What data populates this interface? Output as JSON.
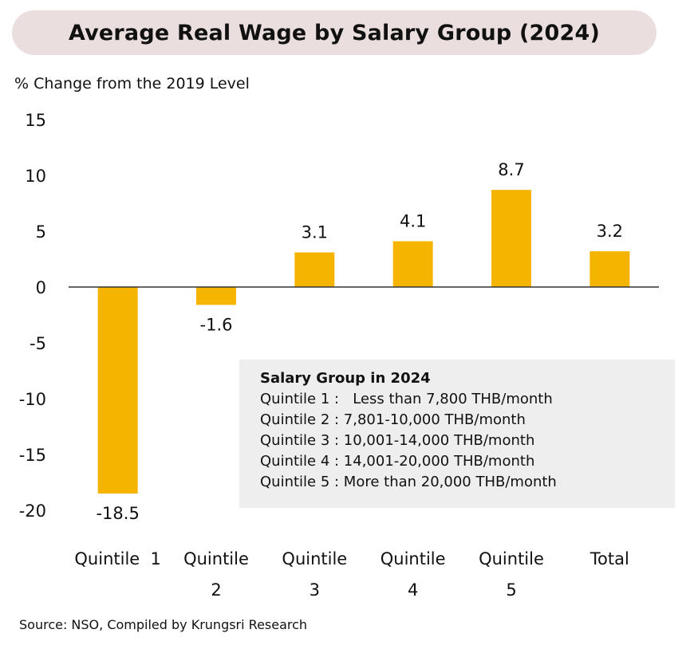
{
  "title": "Average Real Wage by Salary Group (2024)",
  "source": "Source: NSO, Compiled by Krungsri Research",
  "colors": {
    "bar": "#F5B400",
    "axis": "#333333",
    "title_bg": "#EADEDE",
    "legend_bg": "#EEEEEE"
  },
  "legend": {
    "title": "Salary Group in 2024",
    "items": [
      "Quintile 1 :   Less than 7,800 THB/month",
      "Quintile 2 : 7,801-10,000 THB/month",
      "Quintile 3 : 10,001-14,000 THB/month",
      "Quintile 4 : 14,001-20,000 THB/month",
      "Quintile 5 : More than 20,000 THB/month"
    ]
  },
  "chart_data": {
    "type": "bar",
    "title": "Average Real Wage by Salary Group (2024)",
    "ylabel": "% Change from the 2019 Level",
    "xlabel": "",
    "ylim": [
      -20,
      15
    ],
    "yticks": [
      15,
      10,
      5,
      0,
      -5,
      -10,
      -15,
      -20
    ],
    "categories": [
      [
        "Quintile  1",
        ""
      ],
      [
        "Quintile",
        "2"
      ],
      [
        "Quintile",
        "3"
      ],
      [
        "Quintile",
        "4"
      ],
      [
        "Quintile",
        "5"
      ],
      [
        "Total",
        ""
      ]
    ],
    "values": [
      -18.5,
      -1.6,
      3.1,
      4.1,
      8.7,
      3.2
    ],
    "data_labels": [
      "-18.5",
      "-1.6",
      "3.1",
      "4.1",
      "8.7",
      "3.2"
    ],
    "grid": false,
    "legend": "none"
  }
}
